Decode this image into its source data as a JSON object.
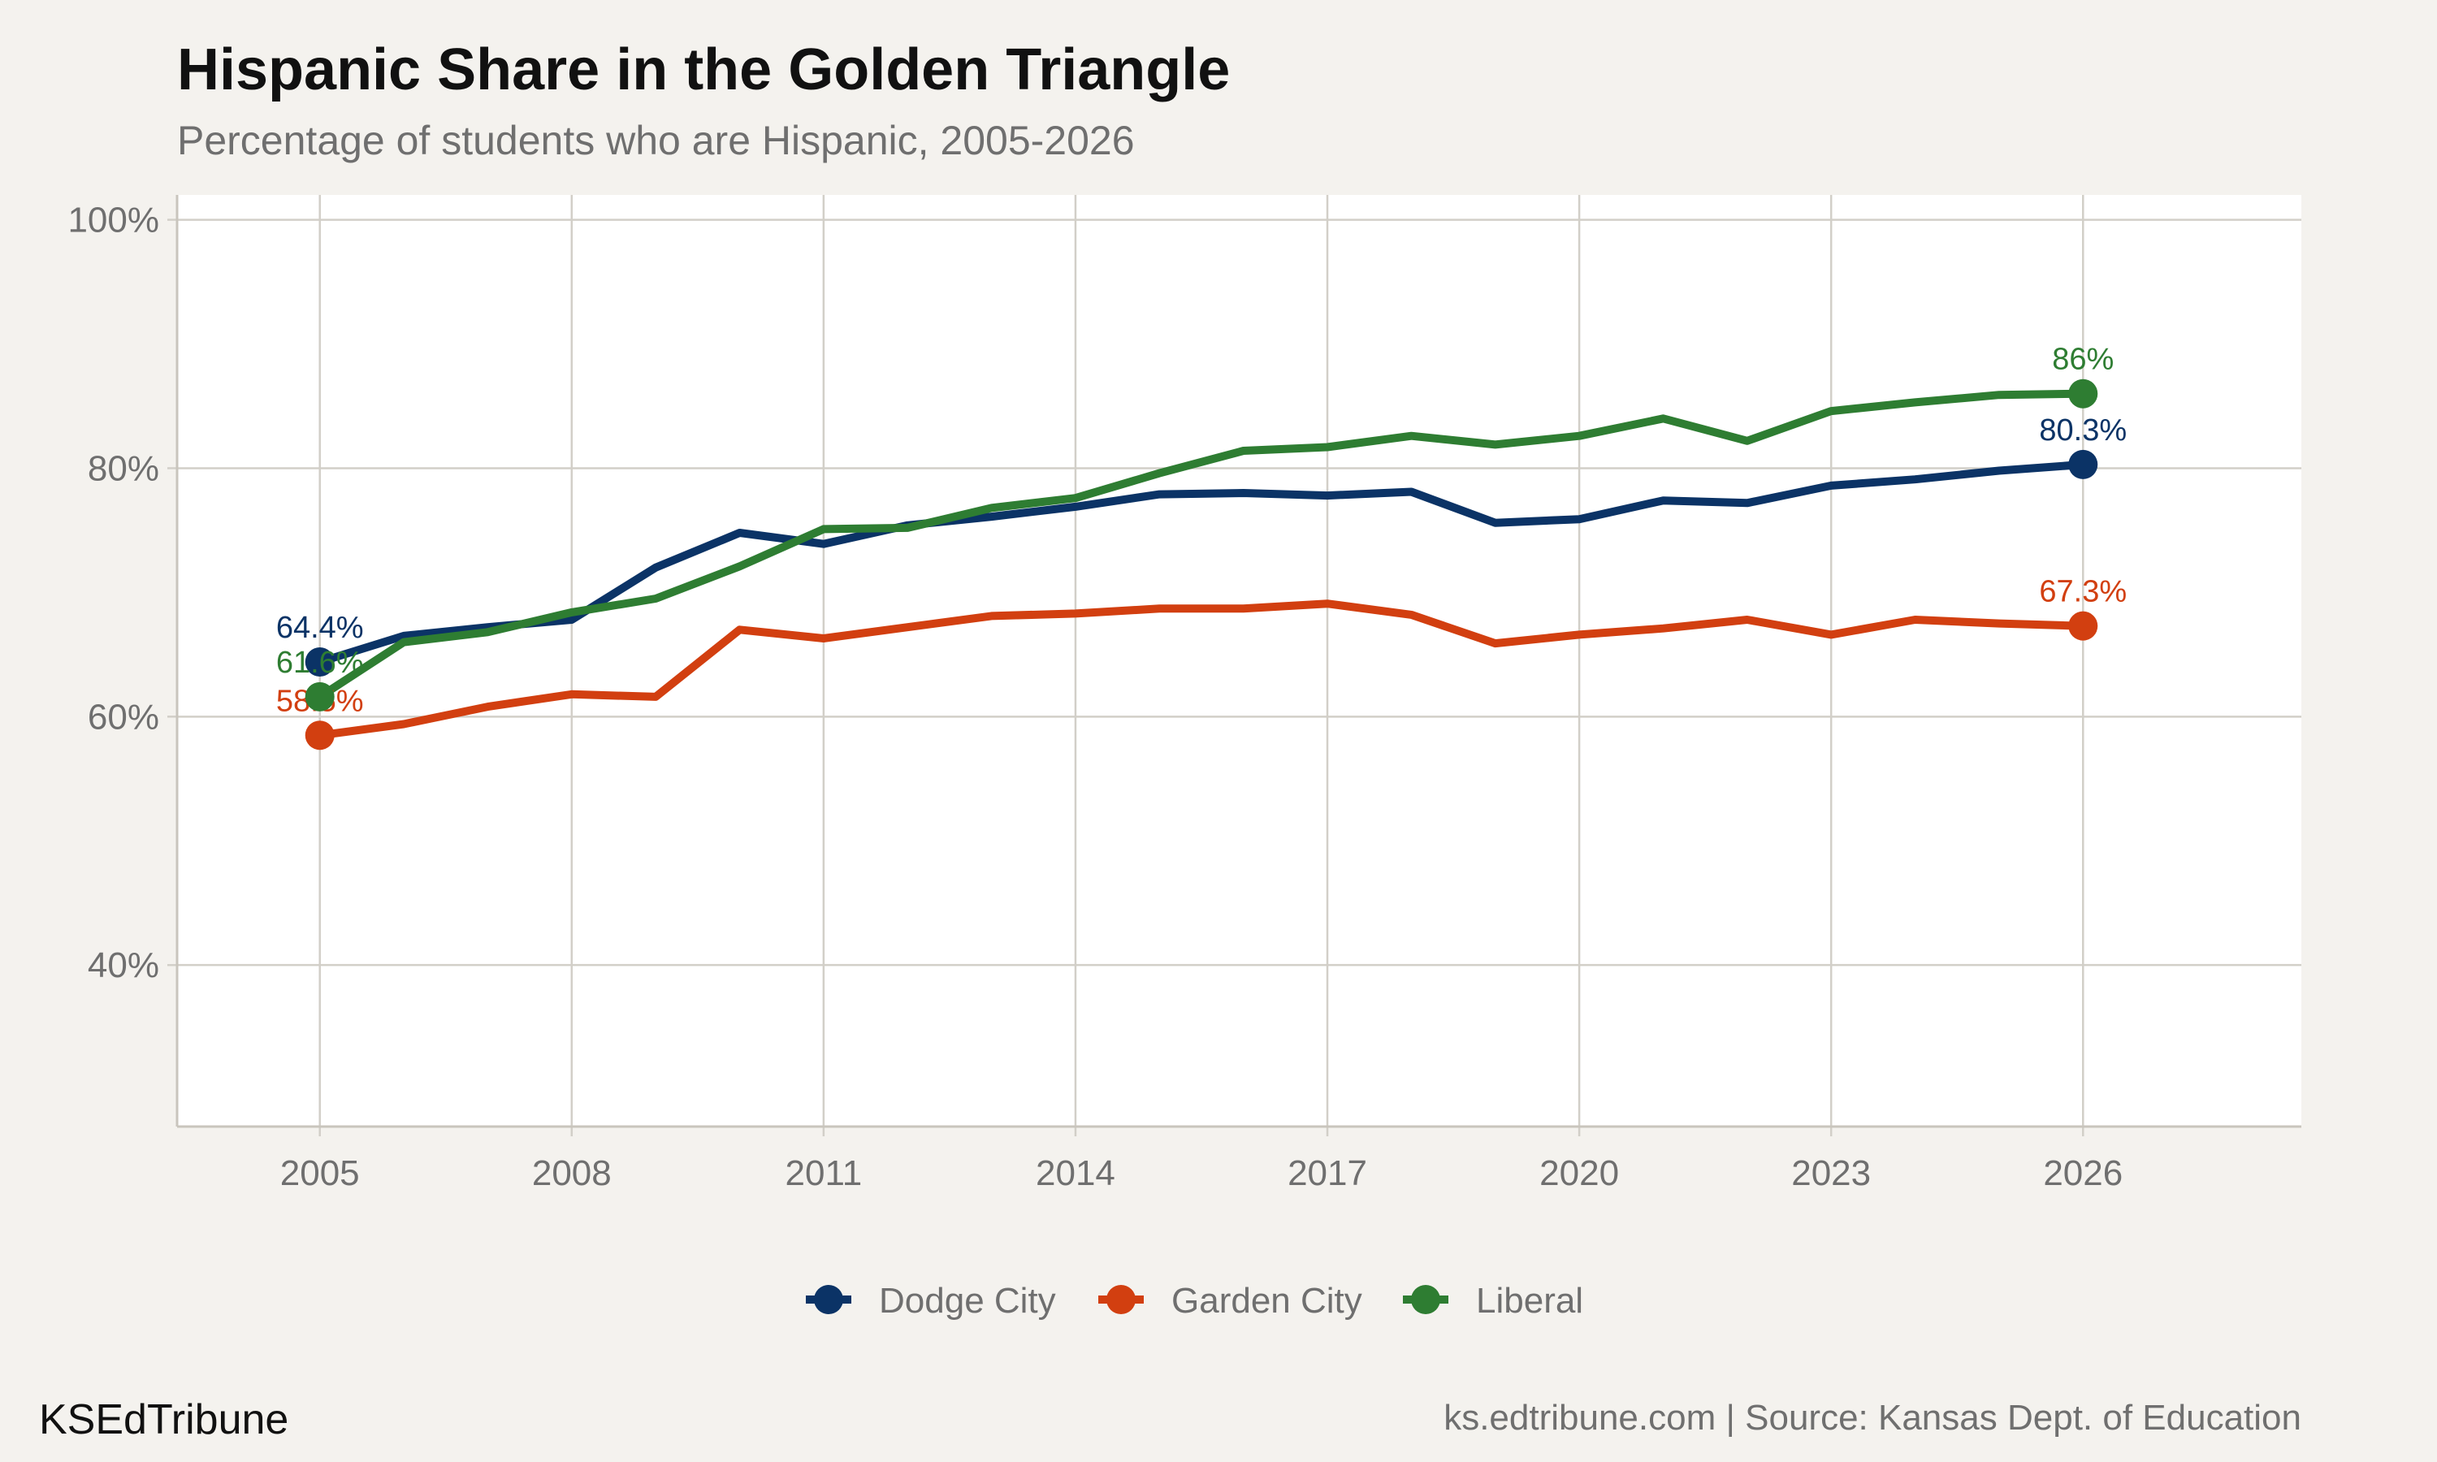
{
  "chart_data": {
    "type": "line",
    "title": "Hispanic Share in the Golden Triangle",
    "subtitle": "Percentage of students who are Hispanic, 2005-2026",
    "xlabel": "",
    "ylabel": "",
    "x": [
      2005,
      2006,
      2007,
      2008,
      2009,
      2010,
      2011,
      2012,
      2013,
      2014,
      2015,
      2016,
      2017,
      2018,
      2019,
      2020,
      2021,
      2022,
      2023,
      2024,
      2025,
      2026
    ],
    "series": [
      {
        "name": "Dodge City",
        "color": "#0b3366",
        "values": [
          64.4,
          66.5,
          67.2,
          67.8,
          72.0,
          74.8,
          73.9,
          75.4,
          76.1,
          76.9,
          77.9,
          78.0,
          77.8,
          78.1,
          75.6,
          75.9,
          77.4,
          77.2,
          78.6,
          79.1,
          79.8,
          80.3
        ],
        "start_label": "64.4%",
        "end_label": "80.3%"
      },
      {
        "name": "Garden City",
        "color": "#d23f10",
        "values": [
          58.5,
          59.4,
          60.8,
          61.8,
          61.6,
          67.0,
          66.3,
          67.2,
          68.1,
          68.3,
          68.7,
          68.7,
          69.1,
          68.2,
          65.9,
          66.6,
          67.1,
          67.8,
          66.6,
          67.8,
          67.5,
          67.3
        ],
        "start_label": "58.5%",
        "end_label": "67.3%"
      },
      {
        "name": "Liberal",
        "color": "#2e7d32",
        "values": [
          61.6,
          66.0,
          66.8,
          68.4,
          69.5,
          72.1,
          75.1,
          75.2,
          76.8,
          77.6,
          79.6,
          81.4,
          81.7,
          82.6,
          81.9,
          82.6,
          84.0,
          82.2,
          84.6,
          85.3,
          85.9,
          86.0
        ],
        "start_label": "61.6%",
        "end_label": "86%"
      }
    ],
    "ylim": [
      27,
      102
    ],
    "xlim": [
      2003.3,
      2028.6
    ],
    "yticks": [
      40,
      60,
      80,
      100
    ],
    "ytick_labels": [
      "40%",
      "60%",
      "80%",
      "100%"
    ],
    "xticks": [
      2005,
      2008,
      2011,
      2014,
      2017,
      2020,
      2023,
      2026
    ],
    "xtick_labels": [
      "2005",
      "2008",
      "2011",
      "2014",
      "2017",
      "2020",
      "2023",
      "2026"
    ],
    "grid": true,
    "legend_position": "bottom"
  },
  "footer": {
    "brand": "KSEdTribune",
    "caption": "ks.edtribune.com | Source: Kansas Dept. of Education"
  }
}
